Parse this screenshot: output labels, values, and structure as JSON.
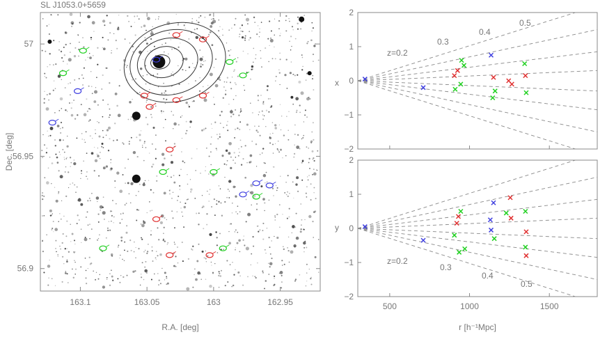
{
  "title": "SL J1053.0+5659",
  "colors": {
    "blue": "#4040e0",
    "red": "#e03030",
    "green": "#20d020",
    "frame": "#888888",
    "dash": "#888888"
  },
  "chart_data": [
    {
      "type": "scatter",
      "panel": "sky-map",
      "xlabel": "R.A. [deg]",
      "ylabel": "Dec. [deg]",
      "xlim": [
        163.13,
        162.92
      ],
      "ylim": [
        56.89,
        57.014
      ],
      "x_ticks": [
        163.1,
        163.05,
        163.0,
        162.95
      ],
      "x_tick_labels": [
        "163.1",
        "163.05",
        "163",
        "162.95"
      ],
      "y_ticks": [
        56.9,
        56.95,
        57.0
      ],
      "y_tick_labels": [
        "56.9",
        "56.95",
        "57"
      ],
      "grid": false,
      "members": [
        {
          "ra": 163.028,
          "dec": 57.004,
          "color": "red",
          "label": ""
        },
        {
          "ra": 163.008,
          "dec": 57.002,
          "color": "red",
          "label": ""
        },
        {
          "ra": 163.098,
          "dec": 56.997,
          "color": "green",
          "label": ""
        },
        {
          "ra": 163.043,
          "dec": 56.993,
          "color": "blue",
          "label": ""
        },
        {
          "ra": 162.988,
          "dec": 56.992,
          "color": "green",
          "label": ""
        },
        {
          "ra": 163.113,
          "dec": 56.987,
          "color": "green",
          "label": ""
        },
        {
          "ra": 163.102,
          "dec": 56.979,
          "color": "blue",
          "label": ""
        },
        {
          "ra": 162.978,
          "dec": 56.986,
          "color": "green",
          "label": ""
        },
        {
          "ra": 163.052,
          "dec": 56.977,
          "color": "red",
          "label": ""
        },
        {
          "ra": 163.028,
          "dec": 56.975,
          "color": "red",
          "label": ""
        },
        {
          "ra": 163.048,
          "dec": 56.972,
          "color": "red",
          "label": ""
        },
        {
          "ra": 163.008,
          "dec": 56.977,
          "color": "red",
          "label": ""
        },
        {
          "ra": 163.121,
          "dec": 56.965,
          "color": "blue",
          "label": ""
        },
        {
          "ra": 163.033,
          "dec": 56.953,
          "color": "red",
          "label": ""
        },
        {
          "ra": 163.038,
          "dec": 56.943,
          "color": "green",
          "label": ""
        },
        {
          "ra": 163.0,
          "dec": 56.943,
          "color": "green",
          "label": ""
        },
        {
          "ra": 162.968,
          "dec": 56.938,
          "color": "blue",
          "label": ""
        },
        {
          "ra": 162.958,
          "dec": 56.937,
          "color": "blue",
          "label": ""
        },
        {
          "ra": 162.978,
          "dec": 56.933,
          "color": "blue",
          "label": ""
        },
        {
          "ra": 162.968,
          "dec": 56.932,
          "color": "green",
          "label": ""
        },
        {
          "ra": 163.043,
          "dec": 56.922,
          "color": "red",
          "label": ""
        },
        {
          "ra": 163.083,
          "dec": 56.909,
          "color": "green",
          "label": ""
        },
        {
          "ra": 162.993,
          "dec": 56.909,
          "color": "green",
          "label": ""
        },
        {
          "ra": 163.033,
          "dec": 56.906,
          "color": "red",
          "label": ""
        },
        {
          "ra": 163.003,
          "dec": 56.906,
          "color": "red",
          "label": ""
        }
      ],
      "contour_center": {
        "ra": 163.04,
        "dec": 56.992
      }
    },
    {
      "type": "scatter",
      "panel": "cone-x",
      "xlabel": "",
      "ylabel": "x",
      "xlim": [
        300,
        1800
      ],
      "ylim": [
        -2,
        2
      ],
      "y_ticks": [
        -2,
        -1,
        0,
        1,
        2
      ],
      "y_tick_labels": [
        "−2",
        "−1",
        "0",
        "1",
        "2"
      ],
      "redshift_labels": [
        "z=0.2",
        "0.3",
        "0.4",
        "0.5"
      ],
      "points": [
        {
          "r": 345,
          "v": 0.05,
          "color": "blue"
        },
        {
          "r": 710,
          "v": -0.2,
          "color": "blue"
        },
        {
          "r": 905,
          "v": 0.15,
          "color": "red"
        },
        {
          "r": 925,
          "v": 0.3,
          "color": "red"
        },
        {
          "r": 950,
          "v": 0.6,
          "color": "green"
        },
        {
          "r": 965,
          "v": 0.45,
          "color": "green"
        },
        {
          "r": 945,
          "v": -0.1,
          "color": "green"
        },
        {
          "r": 910,
          "v": -0.25,
          "color": "green"
        },
        {
          "r": 1135,
          "v": 0.75,
          "color": "blue"
        },
        {
          "r": 1150,
          "v": 0.1,
          "color": "red"
        },
        {
          "r": 1145,
          "v": -0.5,
          "color": "green"
        },
        {
          "r": 1160,
          "v": -0.3,
          "color": "green"
        },
        {
          "r": 1245,
          "v": 0.0,
          "color": "red"
        },
        {
          "r": 1265,
          "v": -0.1,
          "color": "red"
        },
        {
          "r": 1345,
          "v": 0.5,
          "color": "green"
        },
        {
          "r": 1350,
          "v": 0.15,
          "color": "red"
        },
        {
          "r": 1355,
          "v": -0.35,
          "color": "green"
        }
      ]
    },
    {
      "type": "scatter",
      "panel": "cone-y",
      "xlabel": "r [h⁻¹Mpc]",
      "ylabel": "y",
      "xlim": [
        300,
        1800
      ],
      "ylim": [
        -2,
        2
      ],
      "x_ticks": [
        500,
        1000,
        1500
      ],
      "x_tick_labels": [
        "500",
        "1000",
        "1500"
      ],
      "y_ticks": [
        -2,
        -1,
        0,
        1,
        2
      ],
      "y_tick_labels": [
        "−2",
        "−1",
        "0",
        "1",
        "2"
      ],
      "redshift_labels": [
        "z=0.2",
        "0.3",
        "0.4",
        "0.5"
      ],
      "points": [
        {
          "r": 345,
          "v": 0.05,
          "color": "blue"
        },
        {
          "r": 710,
          "v": -0.35,
          "color": "blue"
        },
        {
          "r": 905,
          "v": -0.2,
          "color": "green"
        },
        {
          "r": 920,
          "v": 0.15,
          "color": "red"
        },
        {
          "r": 930,
          "v": 0.35,
          "color": "red"
        },
        {
          "r": 945,
          "v": 0.5,
          "color": "green"
        },
        {
          "r": 935,
          "v": -0.7,
          "color": "green"
        },
        {
          "r": 970,
          "v": -0.6,
          "color": "green"
        },
        {
          "r": 1130,
          "v": 0.25,
          "color": "blue"
        },
        {
          "r": 1150,
          "v": 0.75,
          "color": "blue"
        },
        {
          "r": 1135,
          "v": -0.05,
          "color": "blue"
        },
        {
          "r": 1155,
          "v": -0.3,
          "color": "green"
        },
        {
          "r": 1230,
          "v": 0.45,
          "color": "green"
        },
        {
          "r": 1255,
          "v": 0.9,
          "color": "red"
        },
        {
          "r": 1260,
          "v": 0.3,
          "color": "red"
        },
        {
          "r": 1350,
          "v": 0.5,
          "color": "green"
        },
        {
          "r": 1355,
          "v": -0.1,
          "color": "red"
        },
        {
          "r": 1350,
          "v": -0.55,
          "color": "green"
        },
        {
          "r": 1355,
          "v": -0.8,
          "color": "red"
        }
      ]
    }
  ]
}
